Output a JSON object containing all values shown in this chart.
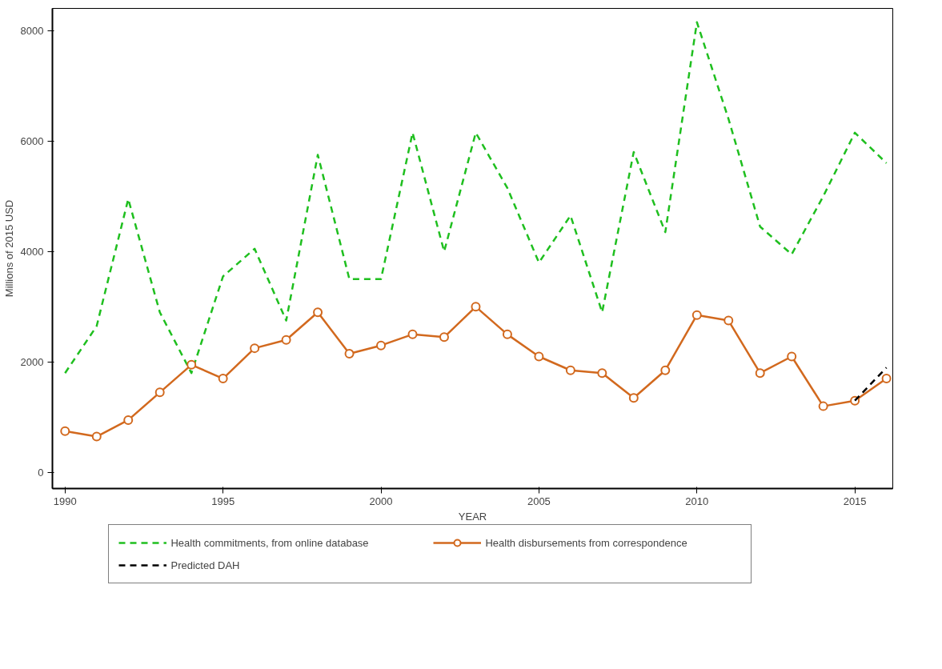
{
  "chart_data": {
    "type": "line",
    "xlabel": "YEAR",
    "ylabel": "Millions of 2015 USD",
    "xlim": [
      1989.6,
      2016.2
    ],
    "ylim": [
      -290,
      8400
    ],
    "xticks": [
      1990,
      1995,
      2000,
      2005,
      2010,
      2015
    ],
    "yticks": [
      0,
      2000,
      4000,
      6000,
      8000
    ],
    "legend": "bottom",
    "series": [
      {
        "name": "Health commitments, from online database",
        "color": "#1fbf1f",
        "line_style": "dashed",
        "marker": "none",
        "x": [
          1990,
          1991,
          1992,
          1993,
          1994,
          1995,
          1996,
          1997,
          1998,
          1999,
          2000,
          2001,
          2002,
          2003,
          2004,
          2005,
          2006,
          2007,
          2008,
          2009,
          2010,
          2011,
          2012,
          2013,
          2014,
          2015,
          2016
        ],
        "values": [
          1800,
          2650,
          4950,
          2900,
          1800,
          3550,
          4050,
          2750,
          5750,
          3500,
          3500,
          6150,
          4000,
          6150,
          5150,
          3800,
          4650,
          2900,
          5800,
          4350,
          8150,
          6400,
          4450,
          3950,
          5000,
          6150,
          5600
        ]
      },
      {
        "name": "Health disbursements from correspondence",
        "color": "#d2691e",
        "line_style": "solid",
        "marker": "circle",
        "x": [
          1990,
          1991,
          1992,
          1993,
          1994,
          1995,
          1996,
          1997,
          1998,
          1999,
          2000,
          2001,
          2002,
          2003,
          2004,
          2005,
          2006,
          2007,
          2008,
          2009,
          2010,
          2011,
          2012,
          2013,
          2014,
          2015,
          2016
        ],
        "values": [
          750,
          650,
          950,
          1450,
          1950,
          1700,
          2250,
          2400,
          2900,
          2150,
          2300,
          2500,
          2450,
          3000,
          2500,
          2100,
          1850,
          1800,
          1350,
          1850,
          2850,
          2750,
          1800,
          2100,
          1200,
          1300,
          1700
        ]
      },
      {
        "name": "Predicted DAH",
        "color": "#000000",
        "line_style": "dashed",
        "marker": "none",
        "x": [
          2015,
          2016
        ],
        "values": [
          1300,
          1900
        ]
      }
    ]
  }
}
